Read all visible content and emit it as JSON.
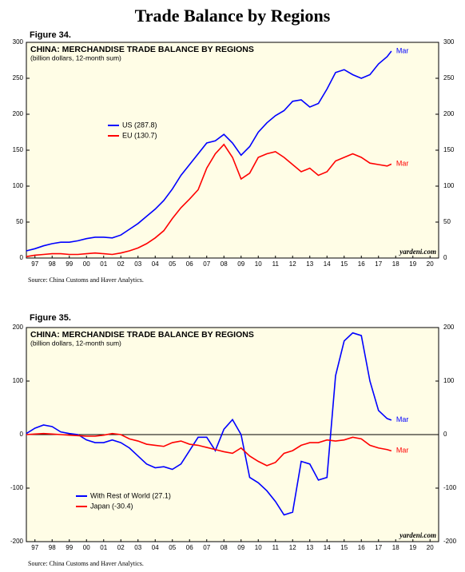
{
  "title": "Trade Balance by Regions",
  "chart_data": [
    {
      "type": "line",
      "figure": "Figure 34.",
      "title": "CHINA: MERCHANDISE TRADE BALANCE BY REGIONS",
      "subtitle": "(billion dollars, 12-month sum)",
      "source": "Source: China Customs and Haver Analytics.",
      "credit": "yardeni.com",
      "x": [
        1997,
        1997.5,
        1998,
        1998.5,
        1999,
        1999.5,
        2000,
        2000.5,
        2001,
        2001.5,
        2002,
        2002.5,
        2003,
        2003.5,
        2004,
        2004.5,
        2005,
        2005.5,
        2006,
        2006.5,
        2007,
        2007.5,
        2008,
        2008.5,
        2009,
        2009.5,
        2010,
        2010.5,
        2011,
        2011.5,
        2012,
        2012.5,
        2013,
        2013.5,
        2014,
        2014.5,
        2015,
        2015.5,
        2016,
        2016.5,
        2017,
        2017.5,
        2018,
        2018.25
      ],
      "series": [
        {
          "name": "US (287.8)",
          "color": "#0000ff",
          "end_label": "Mar",
          "values": [
            10,
            13,
            17,
            20,
            22,
            22,
            24,
            27,
            29,
            29,
            28,
            32,
            40,
            48,
            58,
            68,
            80,
            96,
            115,
            130,
            145,
            160,
            163,
            172,
            160,
            143,
            155,
            175,
            188,
            198,
            205,
            218,
            220,
            210,
            215,
            235,
            258,
            262,
            255,
            250,
            255,
            270,
            280,
            287.8
          ]
        },
        {
          "name": "EU (130.7)",
          "color": "#ff0000",
          "end_label": "Mar",
          "values": [
            2,
            4,
            5,
            6,
            6,
            5,
            5,
            6,
            7,
            6,
            5,
            7,
            10,
            14,
            20,
            28,
            38,
            55,
            70,
            82,
            95,
            125,
            145,
            158,
            140,
            110,
            118,
            140,
            145,
            148,
            140,
            130,
            120,
            125,
            115,
            120,
            135,
            140,
            145,
            140,
            132,
            130,
            128,
            130.7
          ]
        }
      ],
      "xlim": [
        1997,
        2021
      ],
      "xticks": [
        {
          "value": 1997.5,
          "label": "97"
        },
        {
          "value": 1998.5,
          "label": "98"
        },
        {
          "value": 1999.5,
          "label": "99"
        },
        {
          "value": 2000.5,
          "label": "00"
        },
        {
          "value": 2001.5,
          "label": "01"
        },
        {
          "value": 2002.5,
          "label": "02"
        },
        {
          "value": 2003.5,
          "label": "03"
        },
        {
          "value": 2004.5,
          "label": "04"
        },
        {
          "value": 2005.5,
          "label": "05"
        },
        {
          "value": 2006.5,
          "label": "06"
        },
        {
          "value": 2007.5,
          "label": "07"
        },
        {
          "value": 2008.5,
          "label": "08"
        },
        {
          "value": 2009.5,
          "label": "09"
        },
        {
          "value": 2010.5,
          "label": "10"
        },
        {
          "value": 2011.5,
          "label": "11"
        },
        {
          "value": 2012.5,
          "label": "12"
        },
        {
          "value": 2013.5,
          "label": "13"
        },
        {
          "value": 2014.5,
          "label": "14"
        },
        {
          "value": 2015.5,
          "label": "15"
        },
        {
          "value": 2016.5,
          "label": "16"
        },
        {
          "value": 2017.5,
          "label": "17"
        },
        {
          "value": 2018.5,
          "label": "18"
        },
        {
          "value": 2019.5,
          "label": "19"
        },
        {
          "value": 2020.5,
          "label": "20"
        }
      ],
      "ylim": [
        0,
        300
      ],
      "yticks": [
        0,
        50,
        100,
        150,
        200,
        250,
        300
      ],
      "background": "#fffde6"
    },
    {
      "type": "line",
      "figure": "Figure 35.",
      "title": "CHINA: MERCHANDISE TRADE BALANCE BY REGIONS",
      "subtitle": "(billion dollars, 12-month sum)",
      "source": "Source: China Customs and Haver Analytics.",
      "credit": "yardeni.com",
      "x": [
        1997,
        1997.5,
        1998,
        1998.5,
        1999,
        1999.5,
        2000,
        2000.5,
        2001,
        2001.5,
        2002,
        2002.5,
        2003,
        2003.5,
        2004,
        2004.5,
        2005,
        2005.5,
        2006,
        2006.5,
        2007,
        2007.5,
        2008,
        2008.5,
        2009,
        2009.5,
        2010,
        2010.5,
        2011,
        2011.5,
        2012,
        2012.5,
        2013,
        2013.5,
        2014,
        2014.5,
        2015,
        2015.5,
        2016,
        2016.5,
        2017,
        2017.5,
        2018,
        2018.25
      ],
      "series": [
        {
          "name": "With Rest of World (27.1)",
          "color": "#0000ff",
          "end_label": "Mar",
          "values": [
            2,
            12,
            18,
            15,
            5,
            2,
            0,
            -10,
            -15,
            -15,
            -10,
            -15,
            -25,
            -40,
            -55,
            -62,
            -60,
            -65,
            -55,
            -30,
            -5,
            -5,
            -30,
            10,
            28,
            0,
            -80,
            -90,
            -105,
            -125,
            -150,
            -145,
            -50,
            -55,
            -85,
            -80,
            110,
            175,
            190,
            185,
            100,
            45,
            30,
            27.1
          ]
        },
        {
          "name": "Japan (-30.4)",
          "color": "#ff0000",
          "end_label": "Mar",
          "values": [
            0,
            1,
            2,
            1,
            0,
            -1,
            -2,
            -3,
            -3,
            -1,
            2,
            0,
            -8,
            -12,
            -18,
            -20,
            -22,
            -15,
            -12,
            -18,
            -20,
            -24,
            -28,
            -32,
            -35,
            -25,
            -40,
            -50,
            -58,
            -52,
            -35,
            -30,
            -20,
            -15,
            -15,
            -10,
            -12,
            -10,
            -5,
            -8,
            -20,
            -25,
            -28,
            -30.4
          ]
        }
      ],
      "xlim": [
        1997,
        2021
      ],
      "xticks": [
        {
          "value": 1997.5,
          "label": "97"
        },
        {
          "value": 1998.5,
          "label": "98"
        },
        {
          "value": 1999.5,
          "label": "99"
        },
        {
          "value": 2000.5,
          "label": "00"
        },
        {
          "value": 2001.5,
          "label": "01"
        },
        {
          "value": 2002.5,
          "label": "02"
        },
        {
          "value": 2003.5,
          "label": "03"
        },
        {
          "value": 2004.5,
          "label": "04"
        },
        {
          "value": 2005.5,
          "label": "05"
        },
        {
          "value": 2006.5,
          "label": "06"
        },
        {
          "value": 2007.5,
          "label": "07"
        },
        {
          "value": 2008.5,
          "label": "08"
        },
        {
          "value": 2009.5,
          "label": "09"
        },
        {
          "value": 2010.5,
          "label": "10"
        },
        {
          "value": 2011.5,
          "label": "11"
        },
        {
          "value": 2012.5,
          "label": "12"
        },
        {
          "value": 2013.5,
          "label": "13"
        },
        {
          "value": 2014.5,
          "label": "14"
        },
        {
          "value": 2015.5,
          "label": "15"
        },
        {
          "value": 2016.5,
          "label": "16"
        },
        {
          "value": 2017.5,
          "label": "17"
        },
        {
          "value": 2018.5,
          "label": "18"
        },
        {
          "value": 2019.5,
          "label": "19"
        },
        {
          "value": 2020.5,
          "label": "20"
        }
      ],
      "ylim": [
        -200,
        200
      ],
      "yticks": [
        -200,
        -100,
        0,
        100,
        200
      ],
      "background": "#fffde6"
    }
  ]
}
